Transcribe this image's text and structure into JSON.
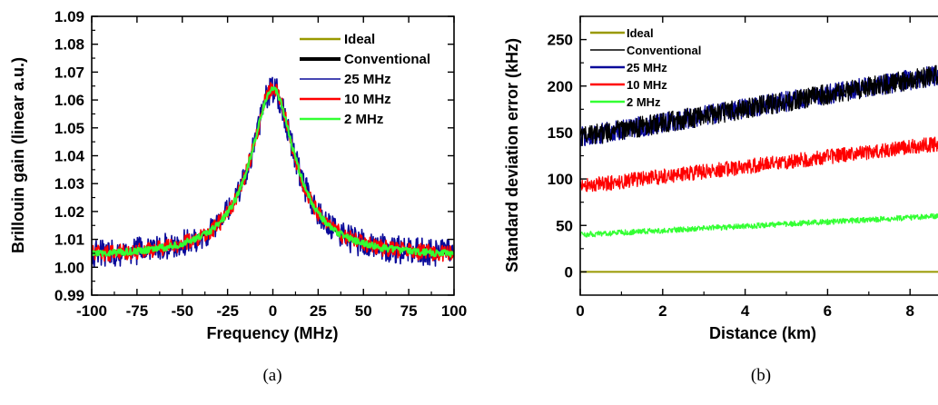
{
  "chart_data": [
    {
      "type": "line",
      "panel_label": "(a)",
      "xlabel": "Frequency (MHz)",
      "ylabel": "Brillouin  gain (linear a.u.)",
      "xlim": [
        -100,
        100
      ],
      "ylim": [
        0.99,
        1.09
      ],
      "xticks": [
        "-100",
        "-75",
        "-50",
        "-25",
        "0",
        "25",
        "50",
        "75",
        "100"
      ],
      "yticks": [
        "0.99",
        "1.00",
        "1.01",
        "1.02",
        "1.03",
        "1.04",
        "1.05",
        "1.06",
        "1.07",
        "1.08",
        "1.09"
      ],
      "legend_position": "top-right",
      "model": {
        "shape": "lorentzian",
        "baseline": 1.0035,
        "peak": 1.064,
        "center_MHz": 0,
        "fwhm_MHz": 30
      },
      "series": [
        {
          "name": "Ideal",
          "color": "#999900",
          "noise_amplitude": 0.0
        },
        {
          "name": "Conventional",
          "color": "#000000",
          "noise_amplitude": 0.0
        },
        {
          "name": "25 MHz",
          "color": "#0a0a9a",
          "noise_amplitude": 0.005
        },
        {
          "name": "10 MHz",
          "color": "#ff0000",
          "noise_amplitude": 0.003
        },
        {
          "name": "2 MHz",
          "color": "#33ff33",
          "noise_amplitude": 0.0012
        }
      ]
    },
    {
      "type": "line",
      "panel_label": "(b)",
      "xlabel": "Distance (km)",
      "ylabel": "Standard deviation error (kHz)",
      "xlim": [
        0,
        8.7
      ],
      "ylim": [
        -25,
        275
      ],
      "xticks": [
        "0",
        "2",
        "4",
        "6",
        "8"
      ],
      "yticks": [
        "0",
        "50",
        "100",
        "150",
        "200",
        "250"
      ],
      "legend_position": "top-left",
      "series": [
        {
          "name": "Ideal",
          "color": "#999900",
          "start_value": 0,
          "end_value": 0,
          "noise_amplitude": 0
        },
        {
          "name": "Conventional",
          "color": "#000000",
          "start_value": 145,
          "end_value": 212,
          "noise_amplitude": 11
        },
        {
          "name": "25 MHz",
          "color": "#0a0a9a",
          "start_value": 145,
          "end_value": 212,
          "noise_amplitude": 11
        },
        {
          "name": "10 MHz",
          "color": "#ff0000",
          "start_value": 92,
          "end_value": 138,
          "noise_amplitude": 8
        },
        {
          "name": "2 MHz",
          "color": "#33ff33",
          "start_value": 40,
          "end_value": 60,
          "noise_amplitude": 3
        }
      ]
    }
  ]
}
